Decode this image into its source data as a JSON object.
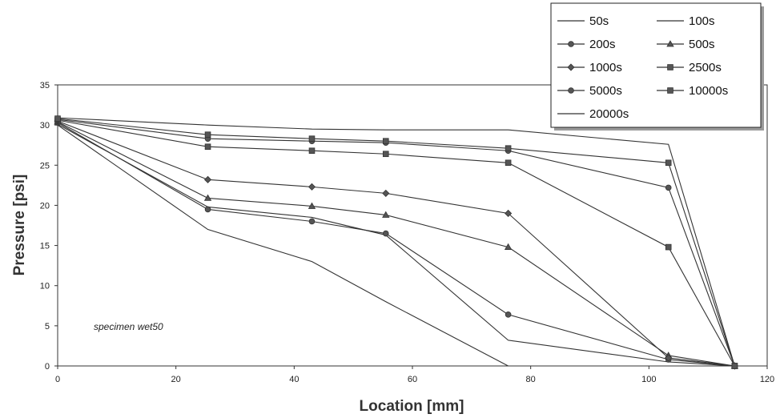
{
  "chart_data": {
    "type": "line",
    "xlabel": "Location [mm]",
    "ylabel": "Pressure [psi]",
    "xlim": [
      0,
      120
    ],
    "ylim": [
      0,
      35
    ],
    "xticks": [
      0,
      20,
      40,
      60,
      80,
      100,
      120
    ],
    "yticks": [
      0,
      5,
      10,
      15,
      20,
      25,
      30,
      35
    ],
    "grid": false,
    "legend_position": "top-right",
    "annotation": "specimen wet50",
    "x": [
      0,
      25.4,
      43,
      55.5,
      76.2,
      103.3,
      114.5
    ],
    "series": [
      {
        "name": "50s",
        "marker": "none",
        "values": [
          30.0,
          17.0,
          13.0,
          8.0,
          0.0,
          null,
          null
        ]
      },
      {
        "name": "100s",
        "marker": "none",
        "values": [
          30.1,
          19.8,
          18.5,
          16.3,
          3.2,
          0.5,
          0.0
        ]
      },
      {
        "name": "200s",
        "marker": "circle",
        "values": [
          30.3,
          19.5,
          18.0,
          16.5,
          6.4,
          0.8,
          0.0
        ]
      },
      {
        "name": "500s",
        "marker": "triangle",
        "values": [
          30.4,
          20.9,
          19.9,
          18.8,
          14.8,
          1.3,
          0.0
        ]
      },
      {
        "name": "1000s",
        "marker": "diamond",
        "values": [
          30.5,
          23.2,
          22.3,
          21.5,
          19.0,
          1.0,
          0.0
        ]
      },
      {
        "name": "2500s",
        "marker": "square",
        "values": [
          30.6,
          27.3,
          26.8,
          26.4,
          25.3,
          14.8,
          0.0
        ]
      },
      {
        "name": "5000s",
        "marker": "circle",
        "values": [
          30.7,
          28.3,
          28.0,
          27.8,
          26.8,
          22.2,
          0.0
        ]
      },
      {
        "name": "10000s",
        "marker": "square",
        "values": [
          30.8,
          28.8,
          28.3,
          28.0,
          27.1,
          25.3,
          0.0
        ]
      },
      {
        "name": "20000s",
        "marker": "none",
        "values": [
          30.9,
          30.0,
          29.5,
          29.4,
          29.4,
          27.6,
          0.0
        ]
      }
    ]
  }
}
